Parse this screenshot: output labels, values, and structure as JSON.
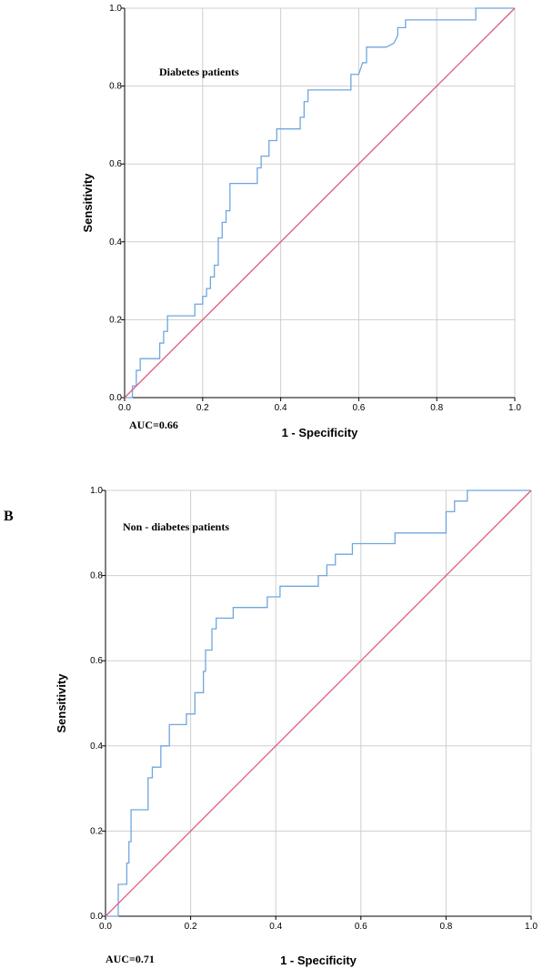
{
  "chart_data": [
    {
      "type": "line",
      "panel_label": "",
      "annotation": "Diabetes patients",
      "auc_text": "AUC=0.66",
      "xlabel": "1 - Specificity",
      "ylabel": "Sensitivity",
      "xlim": [
        0,
        1
      ],
      "ylim": [
        0,
        1
      ],
      "xticks": [
        "0.0",
        "0.2",
        "0.4",
        "0.6",
        "0.8",
        "1.0"
      ],
      "yticks": [
        "0.0",
        "0.2",
        "0.4",
        "0.6",
        "0.8",
        "1.0"
      ],
      "grid": true,
      "series": [
        {
          "color": "#6fa6e0",
          "x": [
            0,
            0.02,
            0.02,
            0.03,
            0.03,
            0.04,
            0.04,
            0.09,
            0.09,
            0.1,
            0.1,
            0.11,
            0.11,
            0.18,
            0.18,
            0.2,
            0.2,
            0.21,
            0.21,
            0.22,
            0.22,
            0.23,
            0.23,
            0.24,
            0.24,
            0.25,
            0.25,
            0.26,
            0.26,
            0.27,
            0.27,
            0.34,
            0.34,
            0.35,
            0.35,
            0.37,
            0.37,
            0.39,
            0.39,
            0.45,
            0.45,
            0.46,
            0.46,
            0.47,
            0.47,
            0.58,
            0.58,
            0.6,
            0.61,
            0.62,
            0.62,
            0.67,
            0.69,
            0.7,
            0.7,
            0.72,
            0.72,
            0.9,
            0.9,
            1.0
          ],
          "y": [
            0,
            0,
            0.03,
            0.03,
            0.07,
            0.07,
            0.1,
            0.1,
            0.14,
            0.14,
            0.17,
            0.17,
            0.21,
            0.21,
            0.24,
            0.24,
            0.26,
            0.26,
            0.28,
            0.28,
            0.31,
            0.31,
            0.34,
            0.34,
            0.41,
            0.41,
            0.45,
            0.45,
            0.48,
            0.48,
            0.55,
            0.55,
            0.59,
            0.59,
            0.62,
            0.62,
            0.66,
            0.66,
            0.69,
            0.69,
            0.72,
            0.72,
            0.76,
            0.76,
            0.79,
            0.79,
            0.83,
            0.83,
            0.86,
            0.86,
            0.9,
            0.9,
            0.91,
            0.93,
            0.95,
            0.95,
            0.97,
            0.97,
            1.0,
            1.0
          ]
        },
        {
          "color": "#e05a7a",
          "x": [
            0,
            1
          ],
          "y": [
            0,
            1
          ]
        }
      ]
    },
    {
      "type": "line",
      "panel_label": "B",
      "annotation": "Non - diabetes patients",
      "auc_text": "AUC=0.71",
      "xlabel": "1 - Specificity",
      "ylabel": "Sensitivity",
      "xlim": [
        0,
        1
      ],
      "ylim": [
        0,
        1
      ],
      "xticks": [
        "0.0",
        "0.2",
        "0.4",
        "0.6",
        "0.8",
        "1.0"
      ],
      "yticks": [
        "0.0",
        "0.2",
        "0.4",
        "0.6",
        "0.8",
        "1.0"
      ],
      "grid": true,
      "series": [
        {
          "color": "#6fa6e0",
          "x": [
            0,
            0.03,
            0.03,
            0.05,
            0.05,
            0.055,
            0.055,
            0.06,
            0.06,
            0.1,
            0.1,
            0.11,
            0.11,
            0.13,
            0.13,
            0.15,
            0.15,
            0.19,
            0.19,
            0.21,
            0.21,
            0.23,
            0.23,
            0.235,
            0.235,
            0.25,
            0.25,
            0.26,
            0.26,
            0.3,
            0.3,
            0.38,
            0.38,
            0.41,
            0.41,
            0.5,
            0.5,
            0.52,
            0.52,
            0.54,
            0.54,
            0.58,
            0.58,
            0.68,
            0.68,
            0.8,
            0.8,
            0.82,
            0.82,
            0.85,
            0.85,
            1.0
          ],
          "y": [
            0,
            0,
            0.075,
            0.075,
            0.125,
            0.125,
            0.175,
            0.175,
            0.25,
            0.25,
            0.325,
            0.325,
            0.35,
            0.35,
            0.4,
            0.4,
            0.45,
            0.45,
            0.475,
            0.475,
            0.525,
            0.525,
            0.575,
            0.575,
            0.625,
            0.625,
            0.675,
            0.675,
            0.7,
            0.7,
            0.725,
            0.725,
            0.75,
            0.75,
            0.775,
            0.775,
            0.8,
            0.8,
            0.825,
            0.825,
            0.85,
            0.85,
            0.875,
            0.875,
            0.9,
            0.9,
            0.95,
            0.95,
            0.975,
            0.975,
            1.0,
            1.0
          ]
        },
        {
          "color": "#e05a7a",
          "x": [
            0,
            1
          ],
          "y": [
            0,
            1
          ]
        }
      ]
    }
  ]
}
